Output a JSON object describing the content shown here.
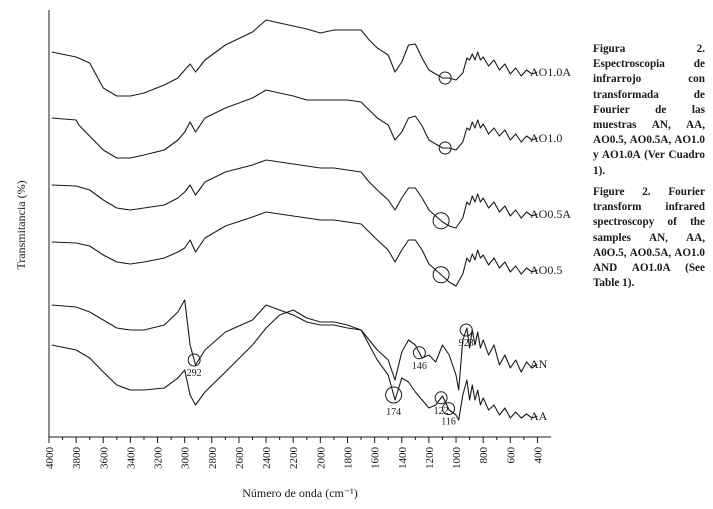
{
  "chart_data": {
    "type": "line",
    "xlabel": "Número de onda (cm⁻¹)",
    "ylabel": "Transmitancia (%)",
    "xlim": [
      4000,
      300
    ],
    "x_inverted": true,
    "grid": false,
    "ticks": [
      "4000",
      "3800",
      "3600",
      "3400",
      "3200",
      "3000",
      "2800",
      "2600",
      "2400",
      "2200",
      "2000",
      "1800",
      "1600",
      "1400",
      "1200",
      "1000",
      "800",
      "600",
      "400"
    ],
    "series": [
      {
        "name": "AO1.0A",
        "x": [
          3980,
          3800,
          3700,
          3600,
          3500,
          3400,
          3300,
          3150,
          3050,
          3000,
          2960,
          2920,
          2850,
          2700,
          2500,
          2400,
          2300,
          2200,
          2100,
          2000,
          1900,
          1800,
          1700,
          1640,
          1580,
          1500,
          1450,
          1400,
          1350,
          1300,
          1250,
          1200,
          1150,
          1100,
          1050,
          1000,
          950,
          920,
          900,
          880,
          860,
          840,
          820,
          800,
          760,
          720,
          680,
          640,
          600,
          560,
          520,
          480,
          440,
          400
        ],
        "y": [
          52,
          57,
          63,
          88,
          96,
          96,
          93,
          85,
          78,
          70,
          64,
          72,
          60,
          45,
          32,
          20,
          23,
          26,
          29,
          33,
          30,
          30,
          30,
          40,
          48,
          55,
          72,
          62,
          45,
          44,
          58,
          70,
          74,
          78,
          78,
          80,
          73,
          58,
          60,
          54,
          60,
          52,
          60,
          57,
          66,
          60,
          70,
          64,
          74,
          68,
          76,
          70,
          74,
          72
        ]
      },
      {
        "name": "AO1.0",
        "x": [
          3980,
          3800,
          3780,
          3600,
          3500,
          3400,
          3300,
          3150,
          3050,
          3000,
          2960,
          2920,
          2850,
          2700,
          2500,
          2400,
          2300,
          2200,
          2100,
          2000,
          1900,
          1800,
          1700,
          1640,
          1580,
          1500,
          1450,
          1400,
          1350,
          1300,
          1250,
          1200,
          1150,
          1100,
          1050,
          1000,
          950,
          920,
          900,
          880,
          860,
          840,
          820,
          800,
          760,
          720,
          680,
          640,
          600,
          560,
          520,
          480,
          440,
          400
        ],
        "y": [
          118,
          120,
          125,
          150,
          158,
          158,
          155,
          150,
          140,
          132,
          122,
          132,
          118,
          108,
          98,
          90,
          93,
          96,
          100,
          100,
          100,
          100,
          102,
          110,
          118,
          125,
          140,
          132,
          118,
          116,
          126,
          140,
          144,
          148,
          148,
          150,
          142,
          128,
          130,
          122,
          128,
          120,
          128,
          124,
          134,
          128,
          136,
          130,
          140,
          134,
          142,
          136,
          140,
          138
        ]
      },
      {
        "name": "AO0.5A",
        "x": [
          3980,
          3800,
          3700,
          3600,
          3500,
          3400,
          3300,
          3150,
          3050,
          3000,
          2960,
          2920,
          2850,
          2700,
          2500,
          2400,
          2300,
          2200,
          2100,
          2000,
          1900,
          1800,
          1700,
          1640,
          1580,
          1500,
          1450,
          1400,
          1350,
          1300,
          1250,
          1200,
          1150,
          1100,
          1050,
          1000,
          950,
          920,
          900,
          880,
          860,
          840,
          820,
          800,
          760,
          720,
          680,
          640,
          600,
          560,
          520,
          480,
          440,
          400
        ],
        "y": [
          185,
          186,
          190,
          200,
          208,
          210,
          208,
          205,
          198,
          192,
          185,
          195,
          182,
          172,
          165,
          160,
          162,
          164,
          166,
          168,
          168,
          170,
          172,
          182,
          190,
          200,
          210,
          198,
          188,
          188,
          198,
          210,
          216,
          222,
          226,
          228,
          218,
          202,
          205,
          196,
          202,
          194,
          202,
          198,
          208,
          202,
          212,
          206,
          216,
          210,
          218,
          212,
          216,
          214
        ]
      },
      {
        "name": "AO0.5",
        "x": [
          3980,
          3800,
          3700,
          3600,
          3500,
          3400,
          3300,
          3150,
          3050,
          3000,
          2960,
          2920,
          2850,
          2700,
          2500,
          2400,
          2300,
          2200,
          2100,
          2000,
          1900,
          1800,
          1700,
          1640,
          1580,
          1500,
          1450,
          1400,
          1350,
          1300,
          1250,
          1200,
          1150,
          1100,
          1050,
          1000,
          950,
          920,
          900,
          880,
          860,
          840,
          820,
          800,
          760,
          720,
          680,
          640,
          600,
          560,
          520,
          480,
          440,
          400
        ],
        "y": [
          242,
          243,
          246,
          255,
          262,
          264,
          262,
          258,
          252,
          248,
          240,
          252,
          238,
          226,
          217,
          212,
          214,
          216,
          218,
          220,
          220,
          222,
          224,
          232,
          240,
          250,
          262,
          250,
          240,
          240,
          250,
          264,
          270,
          276,
          282,
          286,
          274,
          258,
          262,
          254,
          260,
          250,
          258,
          255,
          265,
          258,
          268,
          262,
          272,
          266,
          274,
          268,
          272,
          270
        ]
      },
      {
        "name": "AN",
        "x": [
          3980,
          3800,
          3700,
          3600,
          3500,
          3400,
          3300,
          3150,
          3050,
          3000,
          2960,
          2920,
          2850,
          2700,
          2500,
          2400,
          2300,
          2200,
          2100,
          2000,
          1900,
          1800,
          1700,
          1640,
          1580,
          1500,
          1450,
          1400,
          1350,
          1300,
          1250,
          1200,
          1150,
          1100,
          1050,
          1000,
          980,
          950,
          920,
          900,
          880,
          860,
          840,
          820,
          800,
          760,
          720,
          680,
          640,
          600,
          560,
          520,
          480,
          440,
          400
        ],
        "y": [
          305,
          307,
          312,
          320,
          328,
          330,
          330,
          325,
          312,
          300,
          345,
          365,
          350,
          332,
          320,
          305,
          310,
          315,
          322,
          325,
          325,
          328,
          330,
          340,
          350,
          360,
          380,
          352,
          340,
          345,
          358,
          355,
          362,
          345,
          355,
          375,
          390,
          340,
          328,
          348,
          330,
          345,
          332,
          348,
          340,
          355,
          345,
          365,
          355,
          368,
          360,
          372,
          362,
          368,
          364
        ]
      },
      {
        "name": "AA",
        "x": [
          3980,
          3800,
          3700,
          3600,
          3500,
          3400,
          3300,
          3150,
          3050,
          3000,
          2960,
          2920,
          2850,
          2700,
          2500,
          2400,
          2300,
          2200,
          2100,
          2000,
          1900,
          1800,
          1700,
          1640,
          1580,
          1500,
          1450,
          1400,
          1350,
          1300,
          1250,
          1200,
          1150,
          1100,
          1050,
          1000,
          980,
          950,
          920,
          900,
          880,
          860,
          840,
          820,
          800,
          760,
          720,
          680,
          640,
          600,
          560,
          520,
          480,
          440,
          400
        ],
        "y": [
          345,
          350,
          358,
          372,
          385,
          390,
          390,
          388,
          378,
          370,
          395,
          405,
          392,
          372,
          345,
          328,
          315,
          310,
          318,
          322,
          322,
          325,
          330,
          345,
          360,
          375,
          400,
          378,
          382,
          392,
          400,
          408,
          405,
          396,
          410,
          415,
          420,
          395,
          380,
          400,
          385,
          400,
          390,
          405,
          398,
          410,
          405,
          415,
          408,
          418,
          412,
          418,
          414,
          418,
          416
        ]
      }
    ],
    "annotations": [
      {
        "label": "292",
        "x": 2930
      },
      {
        "label": "174",
        "x": 1460
      },
      {
        "label": "146",
        "x": 1270
      },
      {
        "label": "122",
        "x": 1110
      },
      {
        "label": "116",
        "x": 1055
      },
      {
        "label": "923",
        "x": 925
      }
    ],
    "peak_markers": [
      {
        "series": "AO1.0A",
        "x": 1080
      },
      {
        "series": "AO1.0",
        "x": 1080
      },
      {
        "series": "AO0.5A",
        "x": 1110
      },
      {
        "series": "AO0.5",
        "x": 1110
      }
    ]
  },
  "caption_es": "Figura 2. Espectroscopia de infrarrojo con transformada de Fourier de las muestras AN, AA, AO0.5, AO0.5A, AO1.0 y AO1.0A (Ver Cuadro 1).",
  "caption_en": "Figure 2. Fourier transform infrared spectroscopy of the samples AN, AA, A0O.5, AO0.5A, AO1.0 AND AO1.0A (See Table 1)."
}
